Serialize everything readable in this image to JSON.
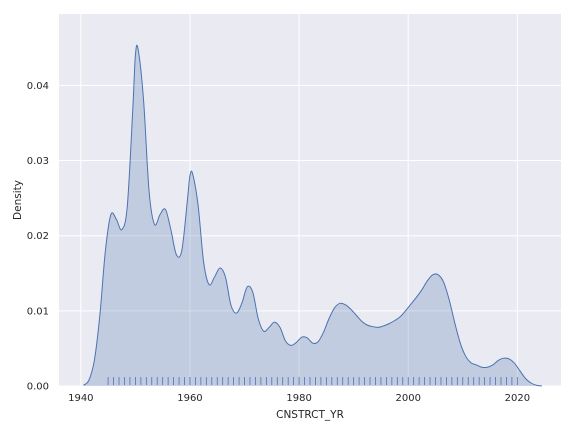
{
  "chart_data": {
    "type": "area",
    "title": "",
    "xlabel": "CNSTRCT_YR",
    "ylabel": "Density",
    "xlim": [
      1936,
      2028
    ],
    "ylim": [
      0,
      0.0495
    ],
    "x_ticks": [
      1940,
      1960,
      1980,
      2000,
      2020
    ],
    "y_ticks": [
      0.0,
      0.01,
      0.02,
      0.03,
      0.04
    ],
    "y_tick_labels": [
      "0.00",
      "0.01",
      "0.02",
      "0.03",
      "0.04"
    ],
    "grid": true,
    "legend": "none",
    "colors": {
      "background": "#eaeaf2",
      "grid": "#ffffff",
      "line": "#4c72b0",
      "fill": "#4c72b0",
      "fill_opacity": 0.25
    },
    "density_curve": {
      "x": [
        1940.5,
        1941.5,
        1942.5,
        1943.5,
        1944.5,
        1945.5,
        1946.5,
        1947.5,
        1948.5,
        1949.5,
        1950.0,
        1950.5,
        1951.5,
        1952.5,
        1953.5,
        1954.5,
        1955.5,
        1956.5,
        1957.5,
        1958.5,
        1959.5,
        1960.0,
        1960.5,
        1961.5,
        1962.5,
        1963.5,
        1964.5,
        1965.5,
        1966.5,
        1967.5,
        1968.5,
        1969.5,
        1970.5,
        1971.5,
        1972.5,
        1973.5,
        1974.5,
        1975.5,
        1976.5,
        1977.5,
        1978.5,
        1979.5,
        1980.5,
        1981.5,
        1982.5,
        1983.5,
        1984.5,
        1985.5,
        1986.5,
        1987.5,
        1988.5,
        1989.5,
        1990.5,
        1991.5,
        1992.5,
        1993.5,
        1994.5,
        1995.5,
        1996.5,
        1997.5,
        1998.5,
        1999.5,
        2000.5,
        2001.5,
        2002.5,
        2003.5,
        2004.5,
        2005.5,
        2006.5,
        2007.5,
        2008.5,
        2009.5,
        2010.5,
        2011.5,
        2012.5,
        2013.5,
        2014.5,
        2015.5,
        2016.5,
        2017.5,
        2018.5,
        2019.5,
        2020.5,
        2021.5,
        2022.5,
        2023.5,
        2024.5
      ],
      "y": [
        0.0001,
        0.0008,
        0.0035,
        0.0095,
        0.018,
        0.0228,
        0.0222,
        0.0208,
        0.0238,
        0.0365,
        0.044,
        0.0448,
        0.038,
        0.026,
        0.0215,
        0.0228,
        0.0235,
        0.0208,
        0.0175,
        0.018,
        0.0245,
        0.028,
        0.0282,
        0.024,
        0.0165,
        0.0135,
        0.0145,
        0.0157,
        0.0145,
        0.0108,
        0.0097,
        0.011,
        0.0132,
        0.0125,
        0.009,
        0.0073,
        0.0078,
        0.0085,
        0.0078,
        0.006,
        0.0054,
        0.0058,
        0.0065,
        0.0064,
        0.0057,
        0.0059,
        0.0072,
        0.009,
        0.0104,
        0.011,
        0.0108,
        0.0102,
        0.0094,
        0.0086,
        0.0081,
        0.0079,
        0.0078,
        0.008,
        0.0083,
        0.0087,
        0.0092,
        0.01,
        0.0109,
        0.0118,
        0.0128,
        0.014,
        0.0148,
        0.0148,
        0.0138,
        0.0115,
        0.0085,
        0.0058,
        0.004,
        0.0031,
        0.0028,
        0.0025,
        0.0025,
        0.0028,
        0.0034,
        0.0037,
        0.0036,
        0.003,
        0.002,
        0.001,
        0.0004,
        0.0001,
        0.0
      ]
    },
    "rug_x": [
      1945,
      1946,
      1947,
      1948,
      1949,
      1950,
      1951,
      1952,
      1953,
      1954,
      1955,
      1956,
      1957,
      1958,
      1959,
      1960,
      1961,
      1962,
      1963,
      1964,
      1965,
      1966,
      1967,
      1968,
      1969,
      1970,
      1971,
      1972,
      1973,
      1974,
      1975,
      1976,
      1977,
      1978,
      1979,
      1980,
      1981,
      1982,
      1983,
      1984,
      1985,
      1986,
      1987,
      1988,
      1989,
      1990,
      1991,
      1992,
      1993,
      1994,
      1995,
      1996,
      1997,
      1998,
      1999,
      2000,
      2001,
      2002,
      2003,
      2004,
      2005,
      2006,
      2007,
      2008,
      2009,
      2010,
      2011,
      2012,
      2013,
      2014,
      2015,
      2016,
      2017,
      2018,
      2019,
      2020
    ]
  }
}
